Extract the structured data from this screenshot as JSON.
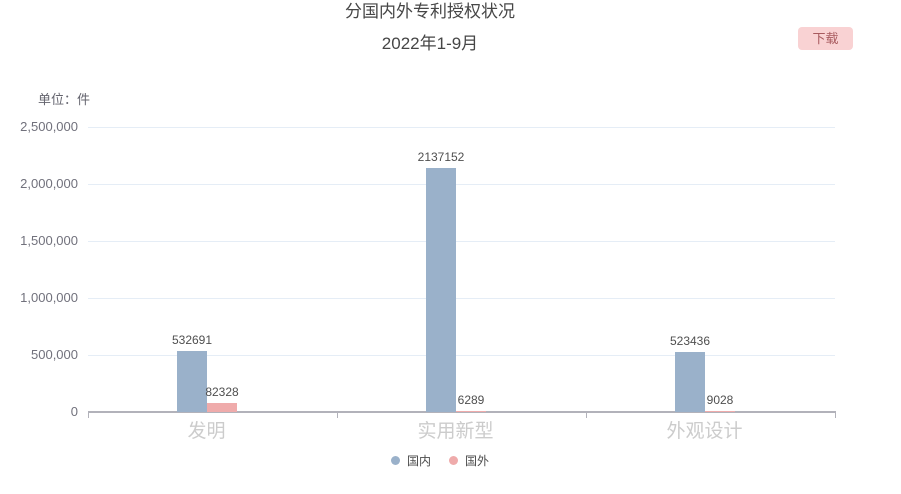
{
  "controls": {
    "download_label": "下载"
  },
  "chart_data": {
    "type": "bar",
    "title": "分国内外专利授权状况",
    "subtitle": "2022年1-9月",
    "unit_label": "单位：件",
    "categories": [
      "发明",
      "实用新型",
      "外观设计"
    ],
    "series": [
      {
        "name": "国内",
        "semantic": "domestic",
        "color": "#9ab1ca",
        "values": [
          532691,
          2137152,
          523436
        ]
      },
      {
        "name": "国外",
        "semantic": "foreign",
        "color": "#efabab",
        "values": [
          82328,
          6289,
          9028
        ]
      }
    ],
    "ylim": [
      0,
      2500000
    ],
    "y_ticks": [
      "0",
      "500,000",
      "1,000,000",
      "1,500,000",
      "2,000,000",
      "2,500,000"
    ],
    "grid": true,
    "value_labels_shown": true,
    "legend_position": "bottom"
  },
  "colors": {
    "domestic_bar": "#9ab1ca",
    "foreign_bar": "#efabab",
    "gridline": "#e5edf6",
    "axis": "#b2b2ba",
    "download_bg": "#f9d2d3",
    "download_text": "#a85a5e",
    "category_label": "#cccccc",
    "value_label": "#4f4f4f"
  }
}
